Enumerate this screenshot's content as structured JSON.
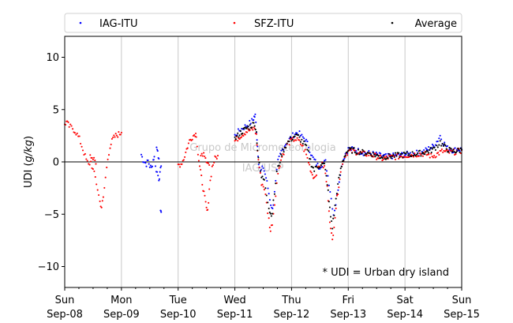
{
  "chart_data": {
    "type": "scatter",
    "ylabel_prefix": "UDI (",
    "ylabel_unit": "g/kg",
    "ylabel_suffix": ")",
    "ylim": [
      -12,
      12
    ],
    "yticks": [
      10,
      5,
      0,
      -5,
      -10
    ],
    "ytick_labels": [
      "10",
      "5",
      "0",
      "−5",
      "−10"
    ],
    "xlim": [
      0,
      7
    ],
    "xticks": [
      {
        "x": 0,
        "day": "Sun",
        "date": "Sep-08"
      },
      {
        "x": 1,
        "day": "Mon",
        "date": "Sep-09"
      },
      {
        "x": 2,
        "day": "Tue",
        "date": "Sep-10"
      },
      {
        "x": 3,
        "day": "Wed",
        "date": "Sep-11"
      },
      {
        "x": 4,
        "day": "Thu",
        "date": "Sep-12"
      },
      {
        "x": 5,
        "day": "Fri",
        "date": "Sep-13"
      },
      {
        "x": 6,
        "day": "Sat",
        "date": "Sep-14"
      },
      {
        "x": 7,
        "day": "Sun",
        "date": "Sep-15"
      }
    ],
    "grid": "vertical",
    "zero_line": true,
    "legend": "top, outside, 3 columns",
    "annotation": "* UDI = Urban dry island",
    "watermark": [
      "Grupo de Micrometeorologia",
      "IAG/USP"
    ],
    "series": [
      {
        "name": "IAG-ITU",
        "color": "#0000ff",
        "segments": [
          [
            [
              1.35,
              0.7
            ],
            [
              1.38,
              0.2
            ],
            [
              1.41,
              0.0
            ],
            [
              1.44,
              -0.2
            ],
            [
              1.47,
              0.1
            ],
            [
              1.5,
              -0.4
            ],
            [
              1.53,
              -0.6
            ],
            [
              1.56,
              0.2
            ],
            [
              1.58,
              0.5
            ]
          ],
          [
            [
              1.6,
              -0.5
            ],
            [
              1.63,
              -1.0
            ],
            [
              1.66,
              -1.6
            ],
            [
              1.68,
              -1.2
            ],
            [
              1.7,
              -0.4
            ]
          ],
          [
            [
              1.62,
              1.6
            ],
            [
              1.64,
              0.8
            ],
            [
              1.66,
              0.3
            ]
          ],
          [
            [
              1.69,
              -4.6
            ],
            [
              1.7,
              -4.8
            ]
          ],
          [
            [
              3.0,
              2.5
            ],
            [
              3.08,
              3.0
            ],
            [
              3.16,
              3.3
            ],
            [
              3.24,
              3.6
            ],
            [
              3.32,
              4.0
            ],
            [
              3.34,
              4.3
            ],
            [
              3.36,
              4.4
            ],
            [
              3.38,
              3.0
            ],
            [
              3.4,
              1.5
            ],
            [
              3.42,
              0.0
            ],
            [
              3.45,
              -1.0
            ],
            [
              3.5,
              -0.5
            ],
            [
              3.55,
              -1.5
            ],
            [
              3.6,
              -3.0
            ],
            [
              3.65,
              -4.5
            ],
            [
              3.68,
              -4.0
            ],
            [
              3.72,
              -2.0
            ],
            [
              3.76,
              0.0
            ],
            [
              3.82,
              1.0
            ],
            [
              3.88,
              1.6
            ],
            [
              3.94,
              2.0
            ],
            [
              4.0,
              2.4
            ],
            [
              4.06,
              2.7
            ],
            [
              4.12,
              2.8
            ],
            [
              4.18,
              2.4
            ],
            [
              4.24,
              2.2
            ],
            [
              4.3,
              1.5
            ],
            [
              4.36,
              0.5
            ],
            [
              4.42,
              0.0
            ],
            [
              4.48,
              -0.5
            ],
            [
              4.54,
              -0.2
            ],
            [
              4.6,
              0.0
            ],
            [
              4.66,
              -2.0
            ],
            [
              4.7,
              -3.5
            ],
            [
              4.74,
              -5.0
            ],
            [
              4.78,
              -4.0
            ],
            [
              4.82,
              -2.5
            ],
            [
              4.86,
              -1.0
            ],
            [
              4.9,
              0.0
            ],
            [
              4.95,
              0.8
            ],
            [
              5.0,
              1.2
            ],
            [
              5.1,
              1.2
            ],
            [
              5.25,
              0.9
            ],
            [
              5.4,
              0.8
            ],
            [
              5.55,
              0.6
            ],
            [
              5.7,
              0.5
            ],
            [
              5.85,
              0.6
            ],
            [
              6.0,
              0.7
            ],
            [
              6.15,
              0.8
            ],
            [
              6.3,
              0.9
            ],
            [
              6.4,
              1.2
            ],
            [
              6.5,
              1.5
            ],
            [
              6.58,
              2.1
            ],
            [
              6.62,
              2.5
            ],
            [
              6.66,
              2.0
            ],
            [
              6.75,
              1.3
            ],
            [
              6.85,
              1.1
            ],
            [
              6.95,
              1.2
            ],
            [
              7.0,
              1.2
            ]
          ]
        ]
      },
      {
        "name": "SFZ-ITU",
        "color": "#ff0000",
        "segments": [
          [
            [
              0.0,
              3.6
            ],
            [
              0.03,
              3.8
            ],
            [
              0.08,
              3.4
            ],
            [
              0.14,
              3.2
            ],
            [
              0.2,
              2.8
            ],
            [
              0.26,
              2.2
            ],
            [
              0.32,
              1.2
            ],
            [
              0.38,
              0.2
            ],
            [
              0.42,
              -0.3
            ],
            [
              0.46,
              0.0
            ],
            [
              0.5,
              -0.8
            ],
            [
              0.54,
              -1.5
            ],
            [
              0.58,
              -2.6
            ],
            [
              0.62,
              -3.8
            ],
            [
              0.65,
              -4.3
            ],
            [
              0.68,
              -3.5
            ],
            [
              0.72,
              -1.5
            ],
            [
              0.76,
              0.3
            ],
            [
              0.8,
              1.5
            ],
            [
              0.85,
              2.2
            ],
            [
              0.9,
              2.5
            ],
            [
              0.97,
              2.7
            ],
            [
              1.0,
              2.8
            ]
          ],
          [
            [
              0.45,
              0.8
            ],
            [
              0.5,
              0.3
            ],
            [
              0.55,
              -0.2
            ]
          ],
          [
            [
              2.0,
              -0.3
            ],
            [
              2.05,
              -0.2
            ],
            [
              2.1,
              0.3
            ],
            [
              2.15,
              1.2
            ],
            [
              2.2,
              2.0
            ],
            [
              2.25,
              2.4
            ],
            [
              2.3,
              2.7
            ],
            [
              2.32,
              2.6
            ],
            [
              2.35,
              0.8
            ],
            [
              2.38,
              -0.5
            ],
            [
              2.41,
              -1.5
            ],
            [
              2.44,
              -2.5
            ],
            [
              2.47,
              -3.5
            ],
            [
              2.5,
              -4.5
            ],
            [
              2.52,
              -4.8
            ],
            [
              2.55,
              -2.5
            ],
            [
              2.6,
              -0.5
            ],
            [
              2.65,
              0.3
            ],
            [
              2.7,
              0.6
            ]
          ],
          [
            [
              2.4,
              0.5
            ],
            [
              2.45,
              1.0
            ],
            [
              2.5,
              0.2
            ],
            [
              2.55,
              -0.3
            ]
          ],
          [
            [
              3.0,
              2.0
            ],
            [
              3.1,
              2.5
            ],
            [
              3.2,
              2.9
            ],
            [
              3.3,
              3.1
            ],
            [
              3.35,
              3.2
            ],
            [
              3.38,
              2.5
            ],
            [
              3.4,
              1.0
            ],
            [
              3.43,
              -0.5
            ],
            [
              3.47,
              -2.0
            ],
            [
              3.52,
              -2.5
            ],
            [
              3.56,
              -4.0
            ],
            [
              3.6,
              -5.5
            ],
            [
              3.63,
              -6.6
            ],
            [
              3.66,
              -5.8
            ],
            [
              3.7,
              -4.0
            ],
            [
              3.74,
              -2.0
            ],
            [
              3.78,
              -0.5
            ],
            [
              3.83,
              0.5
            ],
            [
              3.88,
              1.2
            ],
            [
              3.94,
              1.8
            ],
            [
              4.0,
              2.0
            ],
            [
              4.06,
              2.2
            ],
            [
              4.12,
              2.0
            ],
            [
              4.18,
              1.6
            ],
            [
              4.24,
              1.0
            ],
            [
              4.3,
              0.0
            ],
            [
              4.35,
              -1.0
            ],
            [
              4.4,
              -1.5
            ],
            [
              4.44,
              -1.0
            ],
            [
              4.48,
              -0.5
            ],
            [
              4.52,
              -0.2
            ],
            [
              4.58,
              -0.5
            ],
            [
              4.63,
              -2.5
            ],
            [
              4.66,
              -4.5
            ],
            [
              4.69,
              -6.5
            ],
            [
              4.72,
              -7.5
            ],
            [
              4.75,
              -6.0
            ],
            [
              4.8,
              -3.5
            ],
            [
              4.85,
              -1.5
            ],
            [
              4.9,
              0.0
            ],
            [
              4.95,
              0.7
            ],
            [
              5.0,
              1.0
            ],
            [
              5.1,
              1.0
            ],
            [
              5.25,
              0.8
            ],
            [
              5.4,
              0.7
            ],
            [
              5.5,
              0.5
            ],
            [
              5.6,
              0.3
            ],
            [
              5.7,
              0.4
            ],
            [
              5.85,
              0.5
            ],
            [
              6.0,
              0.6
            ],
            [
              6.15,
              0.7
            ],
            [
              6.3,
              0.8
            ],
            [
              6.4,
              0.7
            ],
            [
              6.48,
              0.5
            ],
            [
              6.55,
              0.7
            ],
            [
              6.65,
              1.0
            ],
            [
              6.8,
              0.9
            ],
            [
              6.95,
              1.0
            ],
            [
              7.0,
              1.1
            ]
          ]
        ]
      },
      {
        "name": "Average",
        "color": "#000000",
        "segments": [
          [
            [
              3.0,
              2.2
            ],
            [
              3.1,
              2.8
            ],
            [
              3.2,
              3.2
            ],
            [
              3.3,
              3.5
            ],
            [
              3.35,
              3.7
            ],
            [
              3.38,
              2.8
            ],
            [
              3.4,
              1.2
            ],
            [
              3.43,
              -0.3
            ],
            [
              3.47,
              -1.5
            ],
            [
              3.52,
              -1.6
            ],
            [
              3.56,
              -3.0
            ],
            [
              3.6,
              -4.4
            ],
            [
              3.63,
              -5.0
            ],
            [
              3.66,
              -4.8
            ],
            [
              3.7,
              -3.0
            ],
            [
              3.74,
              -1.0
            ],
            [
              3.78,
              -0.2
            ],
            [
              3.83,
              0.8
            ],
            [
              3.88,
              1.4
            ],
            [
              3.94,
              1.9
            ],
            [
              4.0,
              2.2
            ],
            [
              4.06,
              2.5
            ],
            [
              4.12,
              2.4
            ],
            [
              4.18,
              2.0
            ],
            [
              4.24,
              1.6
            ],
            [
              4.3,
              0.8
            ],
            [
              4.35,
              -0.2
            ],
            [
              4.4,
              -0.8
            ],
            [
              4.44,
              -0.5
            ],
            [
              4.48,
              -0.4
            ],
            [
              4.52,
              -0.2
            ],
            [
              4.58,
              -0.3
            ],
            [
              4.63,
              -2.0
            ],
            [
              4.66,
              -3.8
            ],
            [
              4.69,
              -5.2
            ],
            [
              4.72,
              -6.2
            ],
            [
              4.75,
              -5.0
            ],
            [
              4.8,
              -2.8
            ],
            [
              4.85,
              -1.2
            ],
            [
              4.9,
              0.0
            ],
            [
              4.95,
              0.8
            ],
            [
              5.0,
              1.1
            ],
            [
              5.1,
              1.1
            ],
            [
              5.25,
              0.9
            ],
            [
              5.4,
              0.8
            ],
            [
              5.55,
              0.5
            ],
            [
              5.7,
              0.5
            ],
            [
              5.85,
              0.6
            ],
            [
              6.0,
              0.7
            ],
            [
              6.15,
              0.75
            ],
            [
              6.3,
              0.85
            ],
            [
              6.4,
              1.0
            ],
            [
              6.5,
              1.2
            ],
            [
              6.58,
              1.6
            ],
            [
              6.62,
              1.9
            ],
            [
              6.66,
              1.6
            ],
            [
              6.75,
              1.2
            ],
            [
              6.85,
              1.0
            ],
            [
              6.95,
              1.1
            ],
            [
              7.0,
              1.15
            ]
          ]
        ]
      }
    ]
  }
}
